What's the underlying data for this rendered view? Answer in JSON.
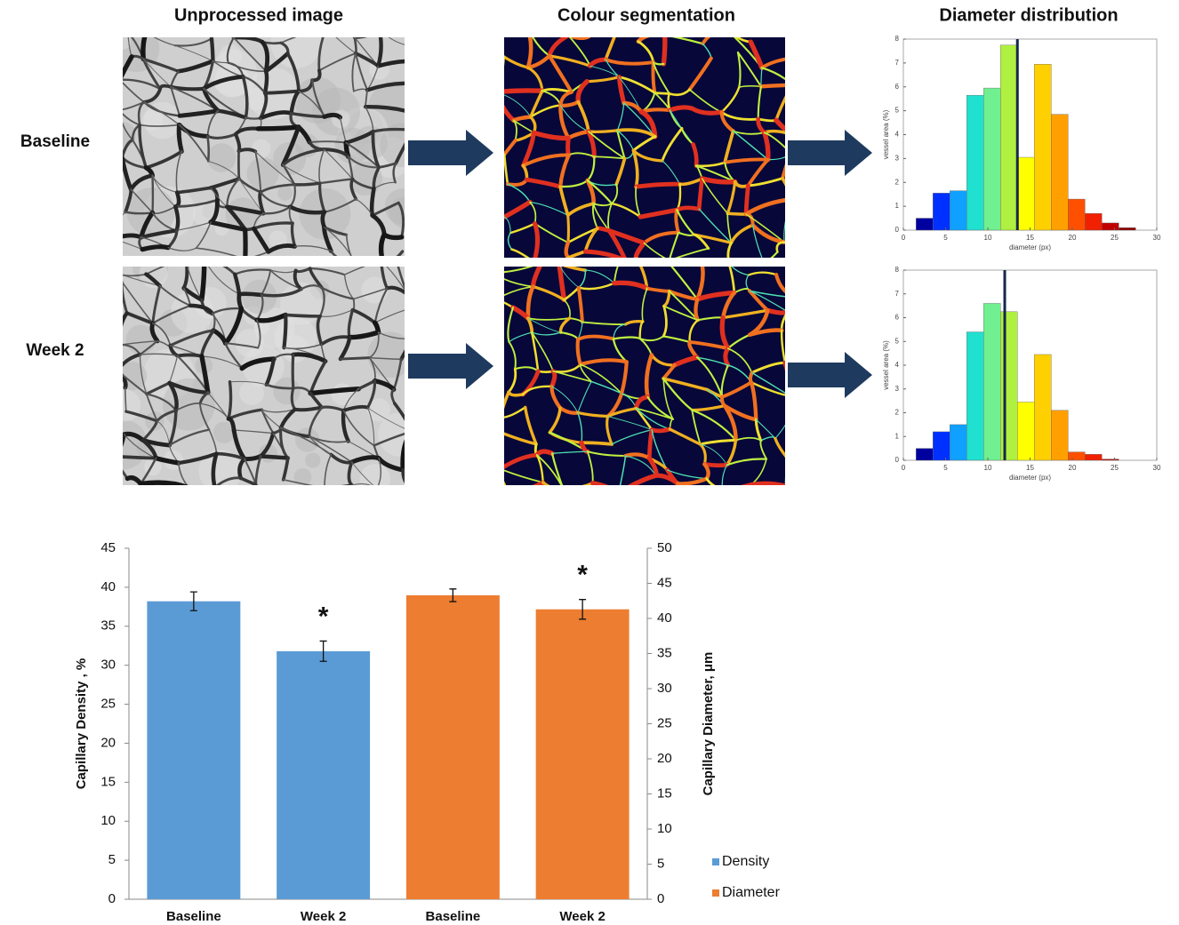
{
  "column_headers": [
    "Unprocessed image",
    "Colour segmentation",
    "Diameter distribution"
  ],
  "row_labels": [
    "Baseline",
    "Week 2"
  ],
  "chart_data": [
    {
      "type": "histogram",
      "bins": [
        1.5,
        3.5,
        5.5,
        7.5,
        9.5,
        11.5,
        13.5,
        15.5,
        17.5,
        19.5,
        21.5,
        23.5,
        25.5,
        27.5
      ],
      "values": [
        0.5,
        1.55,
        1.65,
        5.65,
        5.95,
        7.75,
        3.05,
        6.95,
        4.85,
        1.3,
        0.7,
        0.3,
        0.1
      ],
      "colors": [
        "#00009f",
        "#0030ff",
        "#10a0ff",
        "#20e0d0",
        "#70f090",
        "#b0f040",
        "#ffff00",
        "#ffd000",
        "#ffa000",
        "#ff5000",
        "#f02000",
        "#c00000",
        "#900000"
      ],
      "marker_line": 13.5,
      "marker_color": "#14284a",
      "xlim": [
        0,
        30
      ],
      "ylim": [
        0,
        8
      ],
      "xticks": [
        0,
        5,
        10,
        15,
        20,
        25,
        30
      ],
      "yticks": [
        0,
        1,
        2,
        3,
        4,
        5,
        6,
        7,
        8
      ],
      "xlabel": "diameter (px)",
      "ylabel": "vessel area (%)"
    },
    {
      "type": "histogram",
      "bins": [
        1.5,
        3.5,
        5.5,
        7.5,
        9.5,
        11.5,
        13.5,
        15.5,
        17.5,
        19.5,
        21.5,
        23.5,
        25.5
      ],
      "values": [
        0.5,
        1.2,
        1.5,
        5.4,
        6.6,
        6.25,
        2.45,
        4.45,
        2.1,
        0.35,
        0.25,
        0.05
      ],
      "colors": [
        "#00009f",
        "#0030ff",
        "#10a0ff",
        "#20e0d0",
        "#70f090",
        "#b0f040",
        "#ffff00",
        "#ffd000",
        "#ffa000",
        "#ff5000",
        "#f02000",
        "#c00000"
      ],
      "marker_line": 12,
      "marker_color": "#14284a",
      "xlim": [
        0,
        30
      ],
      "ylim": [
        0,
        8
      ],
      "xticks": [
        0,
        5,
        10,
        15,
        20,
        25,
        30
      ],
      "yticks": [
        0,
        1,
        2,
        3,
        4,
        5,
        6,
        7,
        8
      ],
      "xlabel": "diameter (px)",
      "ylabel": "vessel area (%)"
    },
    {
      "type": "bar",
      "categories": [
        "Baseline",
        "Week 2",
        "Baseline",
        "Week 2"
      ],
      "series": [
        {
          "name": "Density",
          "color": "#5b9bd5",
          "values": [
            38.2,
            31.8,
            null,
            null
          ],
          "errors": [
            1.2,
            1.3,
            null,
            null
          ],
          "annotations": [
            null,
            "*",
            null,
            null
          ]
        },
        {
          "name": "Diameter",
          "color": "#ed7d31",
          "axis": "y2",
          "values": [
            null,
            null,
            43.3,
            41.3
          ],
          "errors": [
            null,
            null,
            0.9,
            1.4
          ],
          "annotations": [
            null,
            null,
            null,
            "*"
          ]
        }
      ],
      "ylabel": "Capillary Density , %",
      "y2label": "Capillary Diameter, μm",
      "ylim": [
        0,
        45
      ],
      "yticks": [
        0,
        5,
        10,
        15,
        20,
        25,
        30,
        35,
        40,
        45
      ],
      "y2lim": [
        0,
        50
      ],
      "y2ticks": [
        0,
        5,
        10,
        15,
        20,
        25,
        30,
        35,
        40,
        45,
        50
      ],
      "legend": "right"
    }
  ]
}
